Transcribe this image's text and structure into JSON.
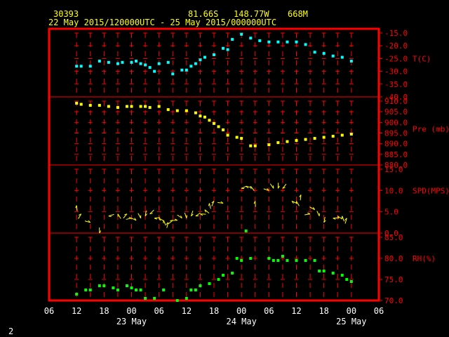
{
  "header": {
    "station": "30393",
    "lat": "81.66S",
    "lon": "148.77W",
    "elev": "668M",
    "period": "22 May 2015/120000UTC - 25 May 2015/000000UTC"
  },
  "footer": {
    "page": "2"
  },
  "x_axis": {
    "tick_labels": [
      "06",
      "12",
      "18",
      "00",
      "06",
      "12",
      "18",
      "00",
      "06",
      "12",
      "18",
      "00",
      "06"
    ],
    "hour_range": [
      6,
      78
    ],
    "day_labels": [
      {
        "label": "23 May",
        "hour": 24
      },
      {
        "label": "24 May",
        "hour": 48
      },
      {
        "label": "25 May",
        "hour": 72
      }
    ]
  },
  "colors": {
    "frame": "#ff0000",
    "header_text": "#ffff00",
    "axis_text": "#ffffff",
    "temperature": "#00ffff",
    "pressure": "#ffff00",
    "wind": "#ffff00",
    "humidity": "#00ff00"
  },
  "chart_data": [
    {
      "type": "scatter",
      "name": "temperature",
      "ylabel": "T(C)",
      "ylim": [
        -40,
        -15
      ],
      "yticks": [
        "-15.0",
        "-20.0",
        "-25.0",
        "-30.0",
        "-35.0",
        "-40.0"
      ],
      "tick_values": [
        -15,
        -20,
        -25,
        -30,
        -35,
        -40
      ],
      "x": [
        12,
        13,
        15,
        17,
        19,
        21,
        22,
        24,
        25,
        26,
        27,
        28,
        29,
        30,
        32,
        33,
        35,
        36,
        37,
        38,
        39,
        40,
        42,
        44,
        45,
        46,
        48,
        50,
        52,
        54,
        56,
        58,
        60,
        62,
        64,
        66,
        68,
        70,
        72
      ],
      "values": [
        -28,
        -28,
        -28,
        -26,
        -26.5,
        -27,
        -26.5,
        -26.5,
        -26,
        -27,
        -27.5,
        -28.5,
        -30,
        -27,
        -26.5,
        -31,
        -29.5,
        -29.5,
        -28,
        -27,
        -25.5,
        -24.5,
        -23.5,
        -21,
        -21.5,
        -17.5,
        -15.5,
        -17,
        -18,
        -18.5,
        -18.5,
        -18.5,
        -18.5,
        -19.5,
        -22.5,
        -23,
        -24,
        -24.5,
        -26
      ]
    },
    {
      "type": "scatter",
      "name": "pressure",
      "ylabel": "Pre (mb)",
      "ylim": [
        880,
        910
      ],
      "yticks": [
        "910.0",
        "905.0",
        "900.0",
        "895.0",
        "890.0",
        "885.0",
        "880.0"
      ],
      "tick_values": [
        910,
        905,
        900,
        895,
        890,
        885,
        880
      ],
      "x": [
        12,
        13,
        15,
        17,
        19,
        21,
        23,
        24,
        26,
        27,
        28,
        30,
        32,
        34,
        36,
        38,
        39,
        40,
        41,
        42,
        43,
        44,
        45,
        47,
        48,
        50,
        51,
        54,
        56,
        58,
        60,
        62,
        64,
        66,
        68,
        70,
        72
      ],
      "values": [
        909,
        908.5,
        908,
        908,
        907.5,
        907,
        907.5,
        907.5,
        907.5,
        907.5,
        907,
        907.5,
        906,
        905.5,
        905.5,
        904.5,
        903,
        902.5,
        901,
        899.5,
        898,
        896.5,
        894,
        893,
        892.5,
        889,
        889,
        889.5,
        890.5,
        891,
        891.5,
        892,
        892.5,
        893,
        893.5,
        894,
        894.5
      ]
    },
    {
      "type": "scatter",
      "name": "wind",
      "ylabel": "SPD(MPS)",
      "ylim": [
        0,
        15
      ],
      "yticks": [
        "15.0",
        "10.0",
        "5.0",
        "0.0"
      ],
      "tick_values": [
        15,
        10,
        5,
        0
      ],
      "x": [
        12,
        13,
        15,
        17,
        19,
        21,
        23,
        24,
        25,
        26,
        27,
        28,
        29,
        30,
        31,
        32,
        33,
        34,
        35,
        36,
        37,
        38,
        39,
        40,
        41,
        42,
        44,
        48,
        49,
        50,
        51,
        54,
        55,
        56,
        57,
        59,
        60,
        61,
        63,
        64,
        65,
        66,
        68,
        69,
        70,
        71
      ],
      "values": [
        6.5,
        4.5,
        2.5,
        0,
        4,
        4.5,
        4.5,
        3.5,
        3,
        3.5,
        4,
        4.5,
        3.5,
        3.5,
        3,
        2.5,
        3,
        3,
        3.5,
        3.5,
        4,
        4,
        4.5,
        5.5,
        7,
        7.5,
        7,
        10.5,
        11,
        11,
        7.5,
        10,
        10.5,
        10.5,
        10.5,
        7.5,
        7.5,
        9,
        4.5,
        5.5,
        4,
        2.5,
        3.5,
        4,
        4,
        3.5
      ]
    },
    {
      "type": "scatter",
      "name": "humidity",
      "ylabel": "RH(%)",
      "ylim": [
        70,
        85
      ],
      "yticks": [
        "85.0",
        "80.0",
        "75.0",
        "70.0"
      ],
      "tick_values": [
        85,
        80,
        75,
        70
      ],
      "x": [
        12,
        14,
        15,
        17,
        18,
        20,
        21,
        23,
        24,
        25,
        26,
        27,
        29,
        31,
        34,
        36,
        37,
        38,
        39,
        41,
        43,
        44,
        46,
        47,
        48,
        49,
        50,
        54,
        55,
        56,
        57,
        58,
        60,
        62,
        64,
        65,
        66,
        68,
        70,
        71,
        72
      ],
      "values": [
        71.5,
        72.5,
        72.5,
        73.5,
        73.5,
        73,
        72.5,
        73.5,
        73,
        72.5,
        72.5,
        70.5,
        70.5,
        72.5,
        70,
        70.5,
        72.5,
        72.5,
        73.5,
        74,
        75,
        76,
        76.5,
        80,
        79.5,
        86.5,
        80,
        80,
        79.5,
        79.5,
        80.5,
        79.5,
        79.5,
        79.5,
        79.5,
        77,
        77,
        76.5,
        76,
        75,
        74.5
      ]
    }
  ]
}
